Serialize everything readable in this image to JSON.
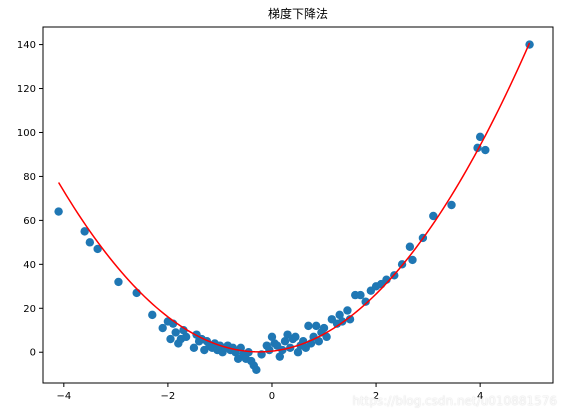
{
  "chart_data": {
    "type": "scatter",
    "title": "梯度下降法",
    "xlabel": "",
    "ylabel": "",
    "xlim": [
      -4.4,
      5.4
    ],
    "ylim": [
      -14,
      148
    ],
    "grid": false,
    "x_ticks": [
      -4,
      -2,
      0,
      2,
      4
    ],
    "y_ticks": [
      0,
      20,
      40,
      60,
      80,
      100,
      120,
      140
    ],
    "colors": {
      "points": "#1f77b4",
      "curve": "#ff0000",
      "axes": "#000000"
    },
    "series": [
      {
        "type": "scatter",
        "points": [
          [
            -4.1,
            64
          ],
          [
            -3.6,
            55
          ],
          [
            -3.5,
            50
          ],
          [
            -3.35,
            47
          ],
          [
            -2.95,
            32
          ],
          [
            -2.6,
            27
          ],
          [
            -2.3,
            17
          ],
          [
            -2.1,
            11
          ],
          [
            -2.0,
            14
          ],
          [
            -1.95,
            6
          ],
          [
            -1.9,
            13
          ],
          [
            -1.85,
            9
          ],
          [
            -1.8,
            4
          ],
          [
            -1.75,
            6
          ],
          [
            -1.7,
            10
          ],
          [
            -1.65,
            7
          ],
          [
            -1.5,
            2
          ],
          [
            -1.45,
            8
          ],
          [
            -1.4,
            5
          ],
          [
            -1.35,
            6
          ],
          [
            -1.3,
            1
          ],
          [
            -1.25,
            5
          ],
          [
            -1.2,
            3
          ],
          [
            -1.15,
            2
          ],
          [
            -1.1,
            4
          ],
          [
            -1.05,
            1
          ],
          [
            -1.0,
            3
          ],
          [
            -0.95,
            0
          ],
          [
            -0.9,
            2
          ],
          [
            -0.85,
            3
          ],
          [
            -0.8,
            1
          ],
          [
            -0.75,
            2
          ],
          [
            -0.7,
            0
          ],
          [
            -0.65,
            -3
          ],
          [
            -0.6,
            2
          ],
          [
            -0.55,
            -1
          ],
          [
            -0.5,
            -3
          ],
          [
            -0.45,
            0
          ],
          [
            -0.4,
            -4
          ],
          [
            -0.35,
            -6
          ],
          [
            -0.3,
            -8
          ],
          [
            -0.2,
            -1
          ],
          [
            -0.1,
            3
          ],
          [
            -0.05,
            1
          ],
          [
            0.0,
            7
          ],
          [
            0.05,
            4
          ],
          [
            0.1,
            3
          ],
          [
            0.15,
            -2
          ],
          [
            0.2,
            1
          ],
          [
            0.25,
            5
          ],
          [
            0.3,
            8
          ],
          [
            0.35,
            2
          ],
          [
            0.4,
            6
          ],
          [
            0.45,
            7
          ],
          [
            0.5,
            0
          ],
          [
            0.55,
            3
          ],
          [
            0.6,
            5
          ],
          [
            0.65,
            2
          ],
          [
            0.7,
            12
          ],
          [
            0.75,
            4
          ],
          [
            0.8,
            7
          ],
          [
            0.85,
            12
          ],
          [
            0.9,
            5
          ],
          [
            0.95,
            9
          ],
          [
            1.0,
            11
          ],
          [
            1.05,
            7
          ],
          [
            1.15,
            15
          ],
          [
            1.25,
            13
          ],
          [
            1.3,
            17
          ],
          [
            1.35,
            14
          ],
          [
            1.45,
            19
          ],
          [
            1.5,
            15
          ],
          [
            1.6,
            26
          ],
          [
            1.7,
            26
          ],
          [
            1.8,
            23
          ],
          [
            1.9,
            28
          ],
          [
            2.0,
            30
          ],
          [
            2.1,
            31
          ],
          [
            2.2,
            33
          ],
          [
            2.35,
            35
          ],
          [
            2.5,
            40
          ],
          [
            2.65,
            48
          ],
          [
            2.7,
            42
          ],
          [
            2.9,
            52
          ],
          [
            3.1,
            62
          ],
          [
            3.45,
            67
          ],
          [
            3.95,
            93
          ],
          [
            4.0,
            98
          ],
          [
            4.1,
            92
          ],
          [
            4.95,
            140
          ]
        ]
      },
      {
        "type": "line",
        "equation": "y = 5.2*x^2 + 2.6*x + 0.5",
        "x_range": [
          -4.1,
          4.95
        ],
        "samples": 120
      }
    ]
  },
  "watermark": "https://blog.csdn.net/u010881576"
}
